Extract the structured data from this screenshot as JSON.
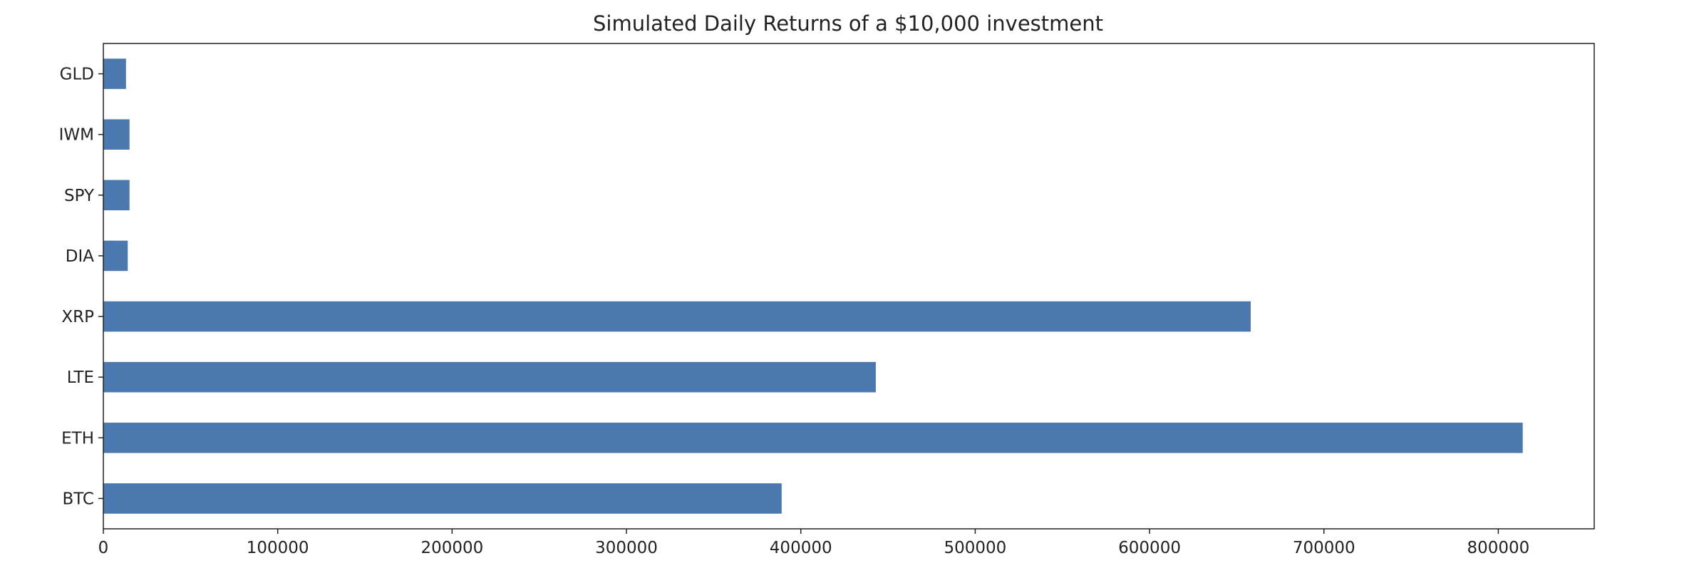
{
  "chart_data": {
    "type": "bar",
    "orientation": "horizontal",
    "title": "Simulated Daily Returns of a $10,000 investment",
    "xlabel": "",
    "ylabel": "",
    "categories": [
      "GLD",
      "IWM",
      "SPY",
      "DIA",
      "XRP",
      "LTE",
      "ETH",
      "BTC"
    ],
    "values": [
      13000,
      15000,
      15000,
      14000,
      658000,
      443000,
      814000,
      389000
    ],
    "xlim": [
      0,
      855000
    ],
    "xticks": [
      0,
      100000,
      200000,
      300000,
      400000,
      500000,
      600000,
      700000,
      800000
    ],
    "xtick_labels": [
      "0",
      "100000",
      "200000",
      "300000",
      "400000",
      "500000",
      "600000",
      "700000",
      "800000"
    ],
    "grid": false,
    "legend": "none",
    "bar_color": "#4c78b0"
  }
}
